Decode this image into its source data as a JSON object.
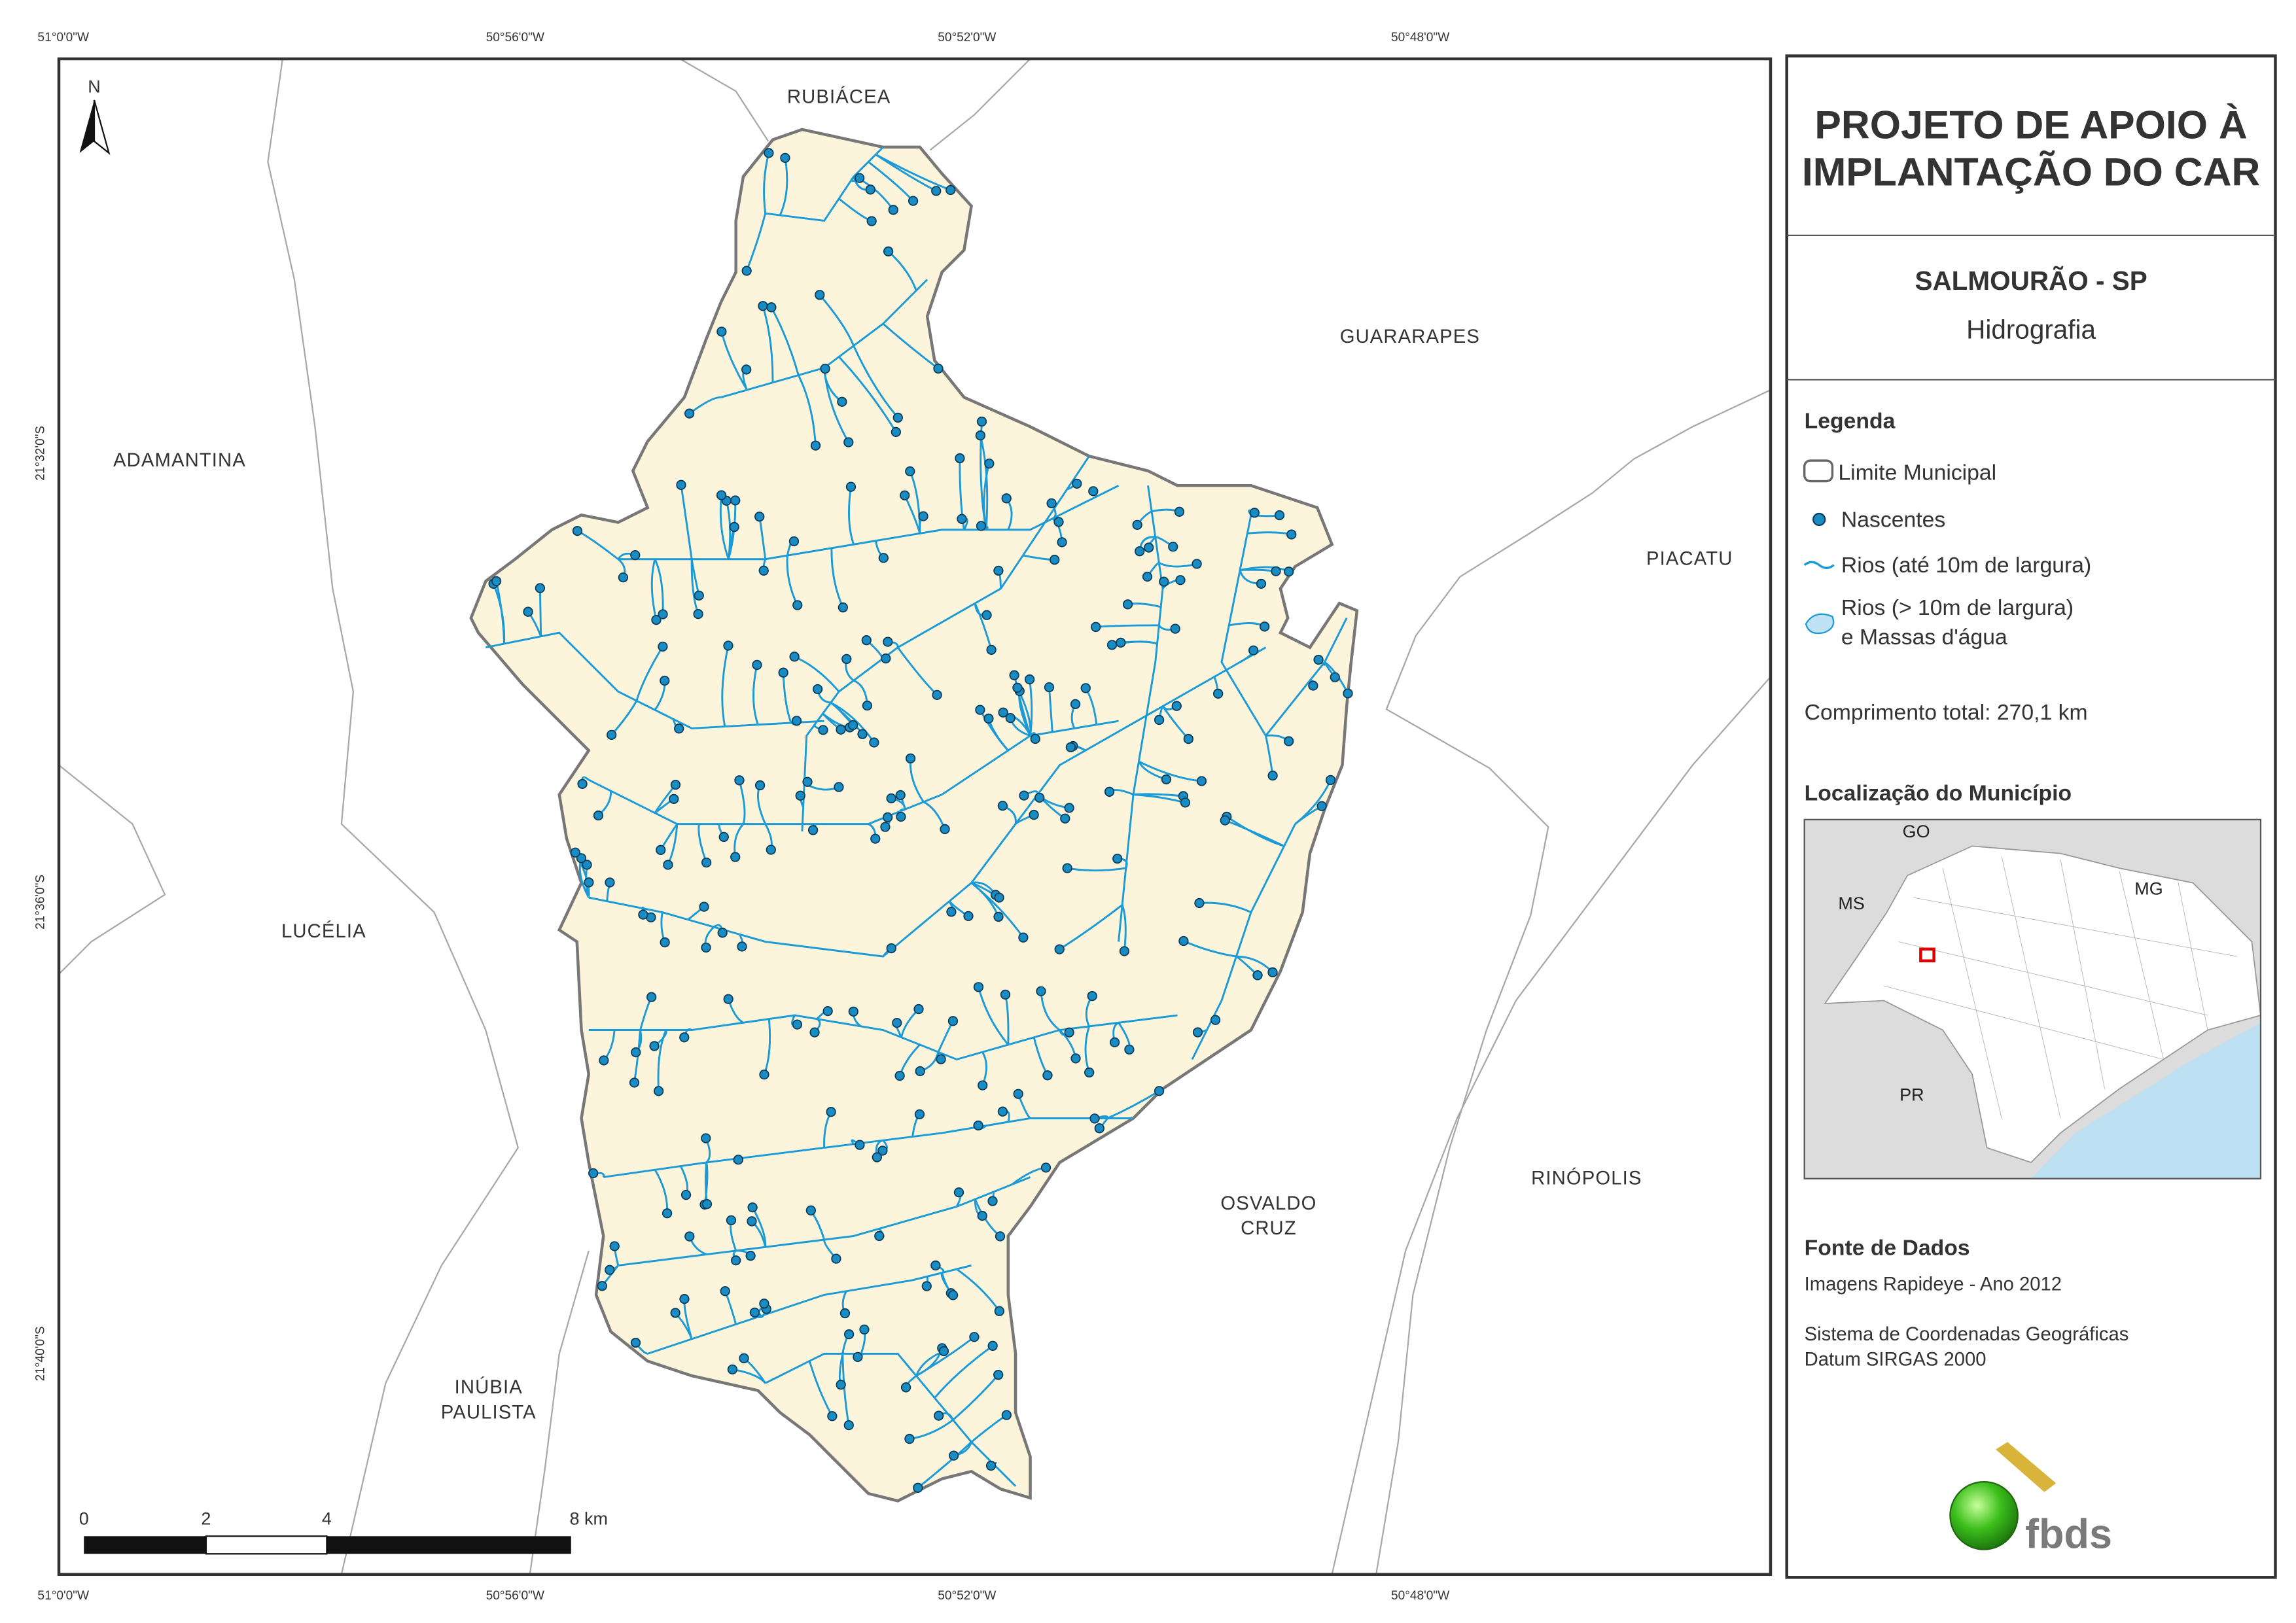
{
  "map": {
    "x_coordinates": [
      "51°0'0\"W",
      "50°56'0\"W",
      "50°52'0\"W",
      "50°48'0\"W"
    ],
    "y_coordinates": [
      "21°32'0\"S",
      "21°36'0\"S",
      "21°40'0\"S"
    ],
    "places": {
      "rubiacea": "RUBIÁCEA",
      "guararapes": "GUARARAPES",
      "adamantina": "ADAMANTINA",
      "piacatu": "PIACATU",
      "lucelia": "LUCÉLIA",
      "osvaldo_cruz": [
        "OSVALDO",
        "CRUZ"
      ],
      "rinopolis": "RINÓPOLIS",
      "inubia_paulista": [
        "INÚBIA",
        "PAULISTA"
      ]
    },
    "north": "N",
    "scale_bar": [
      "0",
      "2",
      "4",
      "8 km"
    ]
  },
  "panel": {
    "title": [
      "PROJETO DE APOIO À",
      "IMPLANTAÇÃO DO CAR"
    ],
    "municipality": "SALMOURÃO - SP",
    "theme": "Hidrografia",
    "legend": {
      "title": "Legenda",
      "items": [
        "Limite Municipal",
        "Nascentes",
        "Rios (até 10m de largura)"
      ],
      "water_bodies": [
        "Rios (> 10m de largura)",
        "e Massas d'água"
      ]
    },
    "total_length": "Comprimento total: 270,1 km",
    "location": {
      "title": "Localização do Município",
      "labels": [
        "GO",
        "MS",
        "MG",
        "PR"
      ]
    },
    "sources": {
      "title": "Fonte de Dados",
      "lines": [
        "Imagens Rapideye - Ano 2012",
        "Sistema de Coordenadas Geográficas",
        "Datum SIRGAS 2000"
      ]
    },
    "logo": "fbds"
  }
}
